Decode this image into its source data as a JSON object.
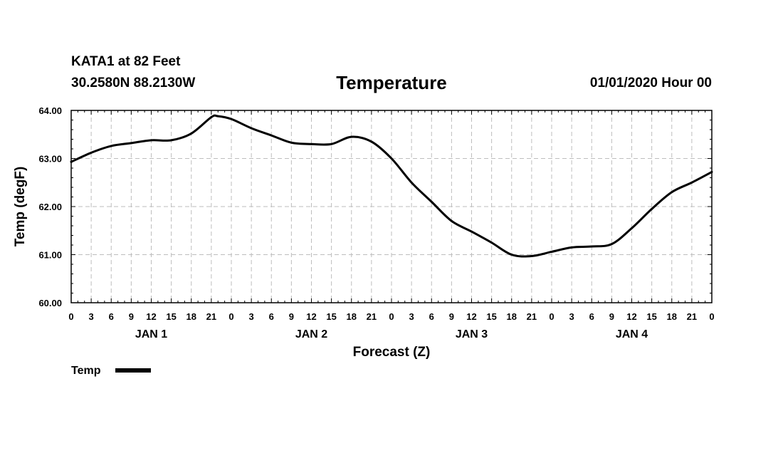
{
  "header": {
    "station": "KATA1 at 82 Feet",
    "coordinates": "30.2580N 88.2130W",
    "issued": "01/01/2020 Hour 00"
  },
  "chart_data": {
    "type": "line",
    "title": "Temperature",
    "xlabel": "Forecast (Z)",
    "ylabel": "Temp (degF)",
    "x_unit": "forecast hour",
    "xlim": [
      0,
      96
    ],
    "ylim": [
      60.0,
      64.0
    ],
    "grid": true,
    "legend_position": "bottom-left",
    "y_ticks": [
      60.0,
      61.0,
      62.0,
      63.0,
      64.0
    ],
    "y_tick_labels": [
      "60.00",
      "61.00",
      "62.00",
      "63.00",
      "64.00"
    ],
    "x_ticks": [
      0,
      3,
      6,
      9,
      12,
      15,
      18,
      21,
      24,
      27,
      30,
      33,
      36,
      39,
      42,
      45,
      48,
      51,
      54,
      57,
      60,
      63,
      66,
      69,
      72,
      75,
      78,
      81,
      84,
      87,
      90,
      93,
      96
    ],
    "x_tick_labels": [
      "0",
      "3",
      "6",
      "9",
      "12",
      "15",
      "18",
      "21",
      "0",
      "3",
      "6",
      "9",
      "12",
      "15",
      "18",
      "21",
      "0",
      "3",
      "6",
      "9",
      "12",
      "15",
      "18",
      "21",
      "0",
      "3",
      "6",
      "9",
      "12",
      "15",
      "18",
      "21",
      "0"
    ],
    "day_labels": [
      {
        "label": "JAN 1",
        "hour": 12
      },
      {
        "label": "JAN 2",
        "hour": 36
      },
      {
        "label": "JAN 3",
        "hour": 60
      },
      {
        "label": "JAN 4",
        "hour": 84
      }
    ],
    "series": [
      {
        "name": "Temp",
        "color": "#000000",
        "x": [
          0,
          3,
          6,
          9,
          12,
          15,
          18,
          21,
          22,
          24,
          27,
          30,
          33,
          36,
          39,
          42,
          45,
          48,
          51,
          54,
          57,
          60,
          63,
          66,
          69,
          72,
          75,
          78,
          81,
          84,
          87,
          90,
          93,
          96
        ],
        "values": [
          62.93,
          63.12,
          63.26,
          63.32,
          63.38,
          63.38,
          63.52,
          63.86,
          63.88,
          63.82,
          63.63,
          63.48,
          63.33,
          63.3,
          63.3,
          63.45,
          63.35,
          63.0,
          62.5,
          62.1,
          61.7,
          61.48,
          61.25,
          61.0,
          60.97,
          61.06,
          61.15,
          61.17,
          61.22,
          61.55,
          61.95,
          62.3,
          62.5,
          62.72
        ]
      }
    ]
  }
}
